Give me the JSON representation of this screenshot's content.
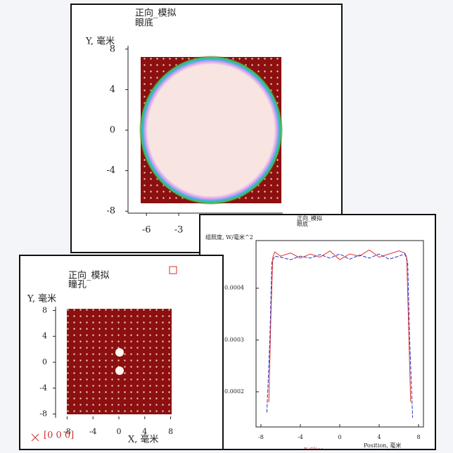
{
  "fundus_window": {
    "title": [
      "正向_模拟",
      "眼底"
    ],
    "ylabel": "Y, 毫米",
    "yticks": [
      8,
      4,
      0,
      -4,
      -8
    ],
    "xticks": [
      -6,
      -3
    ]
  },
  "pupil_window": {
    "title": [
      "正向_模拟",
      "瞳孔"
    ],
    "ylabel": "Y, 毫米",
    "xlabel": "X, 毫米",
    "yticks": [
      8,
      4,
      0,
      -4,
      -8
    ],
    "xticks": [
      -8,
      -4,
      0,
      4,
      8
    ],
    "readout": "[0 0 0]"
  },
  "chart_data": {
    "type": "line",
    "title": [
      "正向_模拟",
      "眼底"
    ],
    "ylabel": "组照度, W/毫米^2",
    "xlabel": "Position, 毫米",
    "xlim": [
      -8.5,
      8.5
    ],
    "ylim": [
      0.000132,
      0.000492
    ],
    "xticks": [
      -8,
      -4,
      0,
      4,
      8
    ],
    "yticks": [
      0.0004,
      0.0003,
      0.0002
    ],
    "series": [
      {
        "name": "X Slice",
        "color": "#e03030",
        "x": [
          -7.2,
          -7.0,
          -6.8,
          -6.6,
          -6.0,
          -5.0,
          -4.0,
          -3.0,
          -2.0,
          -1.0,
          0.0,
          1.0,
          2.0,
          3.0,
          4.0,
          5.0,
          6.0,
          6.6,
          6.8,
          7.0,
          7.2
        ],
        "values": [
          0.00018,
          0.00034,
          0.00046,
          0.00047,
          0.000462,
          0.000468,
          0.000458,
          0.000466,
          0.00046,
          0.000472,
          0.000455,
          0.000466,
          0.000462,
          0.000474,
          0.00046,
          0.000466,
          0.000472,
          0.000468,
          0.00046,
          0.00032,
          0.00018
        ]
      },
      {
        "color": "#3030c0",
        "x": [
          -7.4,
          -7.1,
          -6.9,
          -6.6,
          -6.0,
          -5.0,
          -4.0,
          -3.0,
          -2.0,
          -1.0,
          0.0,
          1.0,
          2.0,
          3.0,
          4.0,
          5.0,
          6.0,
          6.6,
          6.9,
          7.1,
          7.4
        ],
        "values": [
          0.00016,
          0.0003,
          0.00045,
          0.000462,
          0.00046,
          0.000455,
          0.000462,
          0.000458,
          0.000465,
          0.000458,
          0.000466,
          0.000456,
          0.000464,
          0.000458,
          0.000466,
          0.000456,
          0.000462,
          0.000466,
          0.00045,
          0.0003,
          0.00015
        ]
      }
    ]
  }
}
